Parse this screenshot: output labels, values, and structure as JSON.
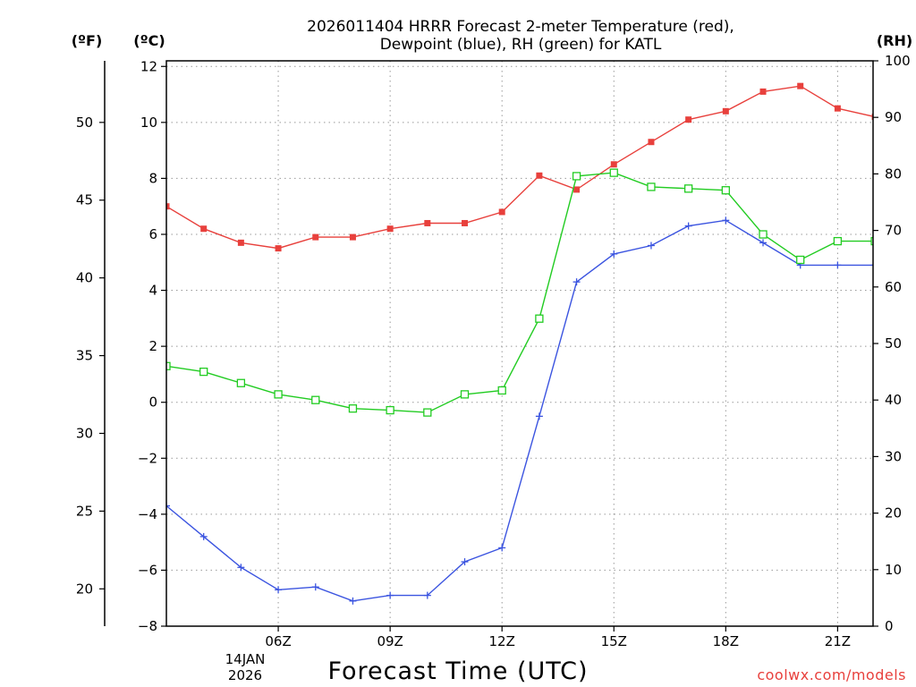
{
  "chart_data": {
    "type": "line",
    "title": "2026011404 HRRR Forecast 2-meter Temperature (red),",
    "title_line2": "Dewpoint (blue), RH (green) for KATL",
    "units": {
      "fahrenheit": "(ºF)",
      "celsius": "(ºC)",
      "rh": "(RH)"
    },
    "xlabel": "Forecast Time (UTC)",
    "date_label": [
      "14JAN",
      "2026"
    ],
    "credit": "coolwx.com/models",
    "x_hours": [
      3,
      4,
      5,
      6,
      7,
      8,
      9,
      10,
      11,
      12,
      13,
      14,
      15,
      16,
      17,
      18,
      19,
      20,
      21,
      22
    ],
    "xlim": [
      3,
      21.95
    ],
    "x_ticks": [
      {
        "hour": 6,
        "label": "06Z"
      },
      {
        "hour": 9,
        "label": "09Z"
      },
      {
        "hour": 12,
        "label": "12Z"
      },
      {
        "hour": 15,
        "label": "15Z"
      },
      {
        "hour": 18,
        "label": "18Z"
      },
      {
        "hour": 21,
        "label": "21Z"
      }
    ],
    "celsius_axis": {
      "ylim": [
        -8,
        12.2
      ],
      "ticks": [
        -8,
        -6,
        -4,
        -2,
        0,
        2,
        4,
        6,
        8,
        10,
        12
      ]
    },
    "fahrenheit_ticks": [
      20,
      25,
      30,
      35,
      40,
      45,
      50
    ],
    "rh_axis": {
      "ylim": [
        0,
        100
      ],
      "ticks": [
        0,
        10,
        20,
        30,
        40,
        50,
        60,
        70,
        80,
        90,
        100
      ]
    },
    "grid": true,
    "series": [
      {
        "name": "Temperature",
        "color": "#e8403c",
        "marker": "filled-square",
        "axis": "celsius",
        "values": [
          7.0,
          6.2,
          5.7,
          5.5,
          5.9,
          5.9,
          6.2,
          6.4,
          6.4,
          6.8,
          8.1,
          7.6,
          8.5,
          9.3,
          10.1,
          10.4,
          11.1,
          11.3,
          10.5,
          10.2
        ]
      },
      {
        "name": "Dewpoint",
        "color": "#3b54e0",
        "marker": "plus",
        "axis": "celsius",
        "values": [
          -3.7,
          -4.8,
          -5.9,
          -6.7,
          -6.6,
          -7.1,
          -6.9,
          -6.9,
          -5.7,
          -5.2,
          -0.5,
          4.3,
          5.3,
          5.6,
          6.3,
          6.5,
          5.7,
          4.9,
          4.9,
          4.9
        ]
      },
      {
        "name": "RH",
        "color": "#22cc22",
        "marker": "open-square",
        "axis": "rh",
        "values": [
          46,
          45,
          43,
          41,
          40,
          38.5,
          38.2,
          37.8,
          41,
          41.7,
          54.4,
          79.6,
          80.2,
          77.7,
          77.4,
          77.1,
          69.3,
          64.8,
          68.1,
          68.1
        ]
      }
    ]
  }
}
